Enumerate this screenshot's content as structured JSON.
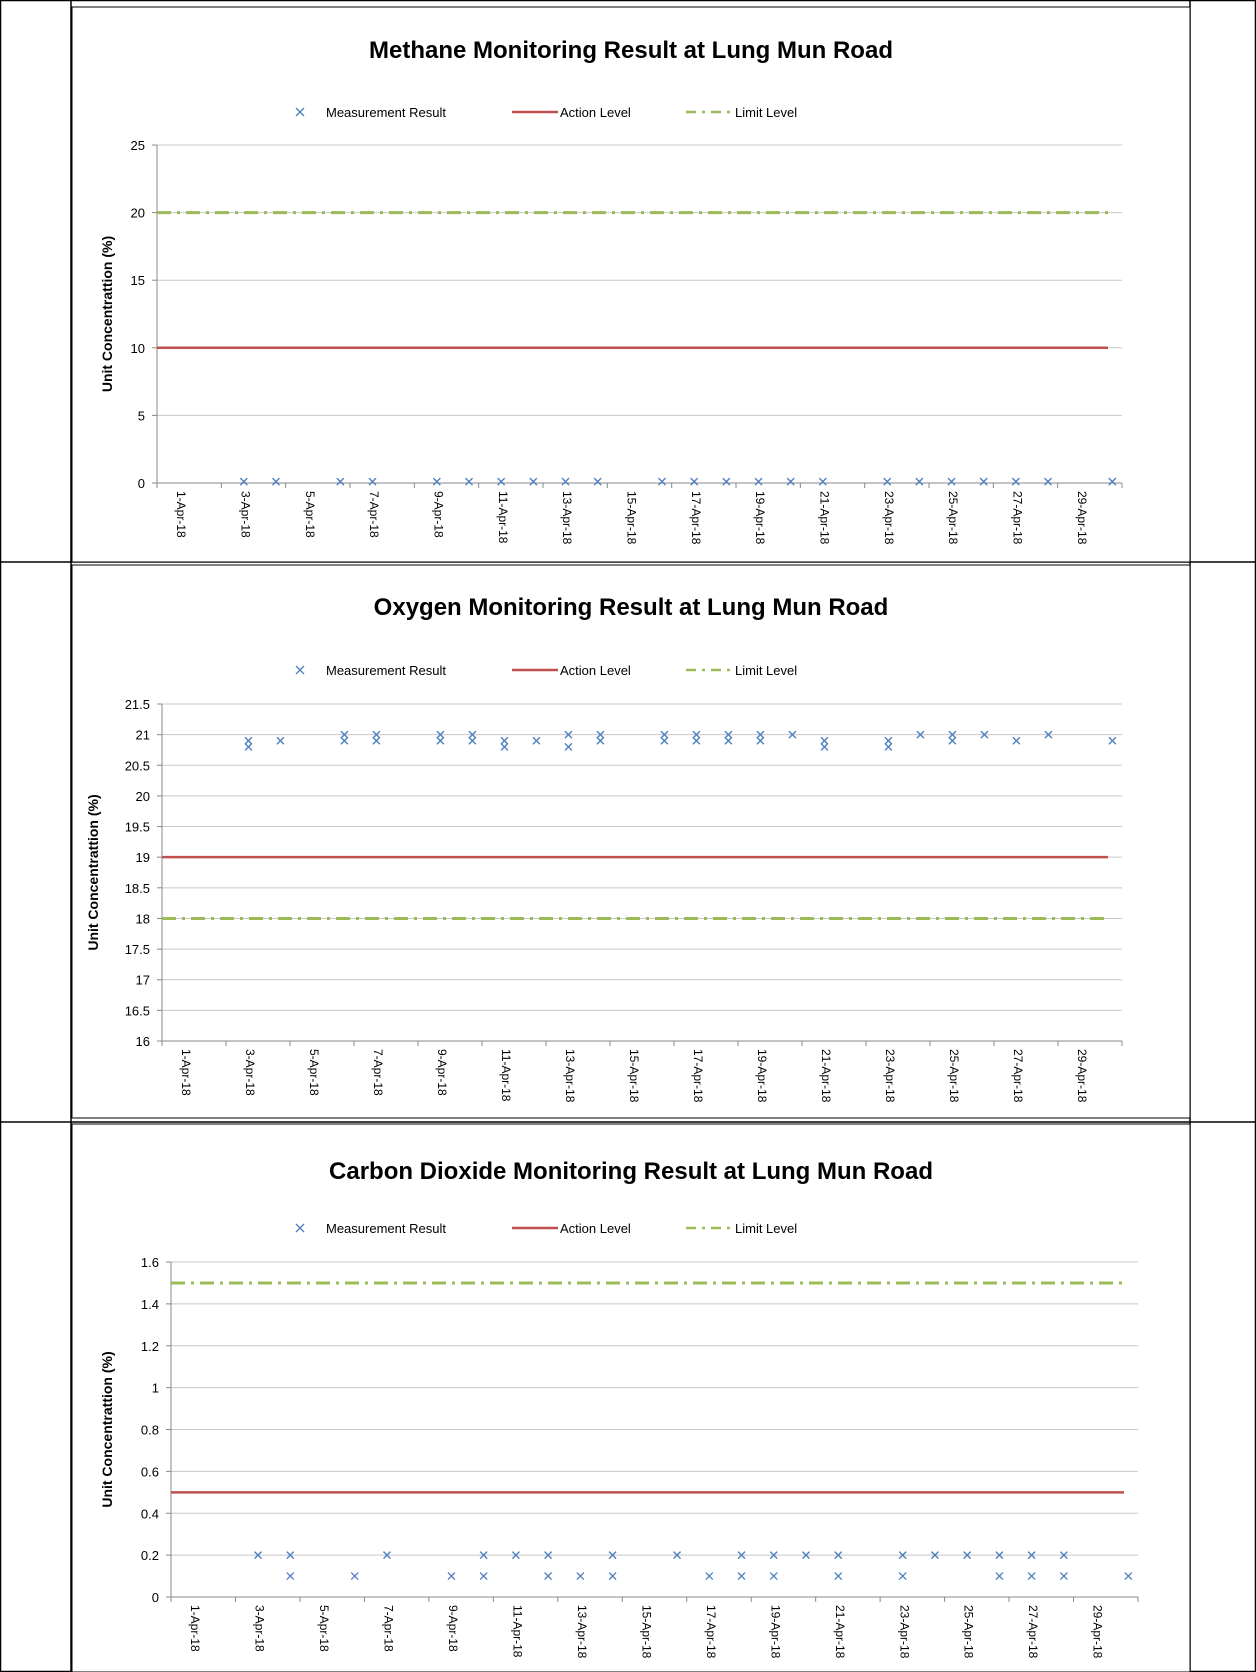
{
  "chart_data": [
    {
      "type": "scatter",
      "title": "Methane Monitoring Result at Lung Mun Road",
      "xlabel": "",
      "ylabel": "Unit Concentrattion (%)",
      "ylim": [
        0,
        25
      ],
      "yticks": [
        "0",
        "5",
        "10",
        "15",
        "20",
        "25"
      ],
      "xticks": [
        "1-Apr-18",
        "3-Apr-18",
        "5-Apr-18",
        "7-Apr-18",
        "9-Apr-18",
        "11-Apr-18",
        "13-Apr-18",
        "15-Apr-18",
        "17-Apr-18",
        "19-Apr-18",
        "21-Apr-18",
        "23-Apr-18",
        "25-Apr-18",
        "27-Apr-18",
        "29-Apr-18"
      ],
      "grid": true,
      "legend_position": "top",
      "legend": [
        "Measurement Result",
        "Action Level",
        "Limit Level"
      ],
      "action_level": 10,
      "limit_level": 20,
      "colors": {
        "measurement": "#4f81bd",
        "action": "#c0504d",
        "limit": "#9bbb59"
      },
      "series": [
        {
          "name": "Measurement Result",
          "points": [
            [
              3.2,
              0.1
            ],
            [
              4.2,
              0.1
            ],
            [
              6.2,
              0.1
            ],
            [
              7.2,
              0.1
            ],
            [
              9.2,
              0.1
            ],
            [
              10.2,
              0.1
            ],
            [
              11.2,
              0.1
            ],
            [
              12.2,
              0.1
            ],
            [
              13.2,
              0.1
            ],
            [
              14.2,
              0.1
            ],
            [
              16.2,
              0.1
            ],
            [
              17.2,
              0.1
            ],
            [
              18.2,
              0.1
            ],
            [
              19.2,
              0.1
            ],
            [
              20.2,
              0.1
            ],
            [
              21.2,
              0.1
            ],
            [
              23.2,
              0.1
            ],
            [
              24.2,
              0.1
            ],
            [
              25.2,
              0.1
            ],
            [
              26.2,
              0.1
            ],
            [
              27.2,
              0.1
            ],
            [
              28.2,
              0.1
            ],
            [
              30.2,
              0.1
            ]
          ]
        }
      ]
    },
    {
      "type": "scatter",
      "title": "Oxygen Monitoring Result at Lung Mun Road",
      "xlabel": "",
      "ylabel": "Unit Concentrattion (%)",
      "ylim": [
        16,
        21.5
      ],
      "yticks": [
        "16",
        "16.5",
        "17",
        "17.5",
        "18",
        "18.5",
        "19",
        "19.5",
        "20",
        "20.5",
        "21",
        "21.5"
      ],
      "xticks": [
        "1-Apr-18",
        "3-Apr-18",
        "5-Apr-18",
        "7-Apr-18",
        "9-Apr-18",
        "11-Apr-18",
        "13-Apr-18",
        "15-Apr-18",
        "17-Apr-18",
        "19-Apr-18",
        "21-Apr-18",
        "23-Apr-18",
        "25-Apr-18",
        "27-Apr-18",
        "29-Apr-18"
      ],
      "grid": true,
      "legend_position": "top",
      "legend": [
        "Measurement Result",
        "Action Level",
        "Limit Level"
      ],
      "action_level": 19,
      "limit_level": 18,
      "colors": {
        "measurement": "#4f81bd",
        "action": "#c0504d",
        "limit": "#9bbb59"
      },
      "series": [
        {
          "name": "Measurement Result",
          "points": [
            [
              3.2,
              20.9
            ],
            [
              3.2,
              20.8
            ],
            [
              4.2,
              20.9
            ],
            [
              6.2,
              21.0
            ],
            [
              6.2,
              20.9
            ],
            [
              7.2,
              21.0
            ],
            [
              7.2,
              20.9
            ],
            [
              9.2,
              21.0
            ],
            [
              9.2,
              20.9
            ],
            [
              10.2,
              21.0
            ],
            [
              10.2,
              20.9
            ],
            [
              11.2,
              20.9
            ],
            [
              11.2,
              20.8
            ],
            [
              12.2,
              20.9
            ],
            [
              13.2,
              21.0
            ],
            [
              13.2,
              20.8
            ],
            [
              14.2,
              21.0
            ],
            [
              14.2,
              20.9
            ],
            [
              16.2,
              21.0
            ],
            [
              16.2,
              20.9
            ],
            [
              17.2,
              21.0
            ],
            [
              17.2,
              20.9
            ],
            [
              18.2,
              21.0
            ],
            [
              18.2,
              20.9
            ],
            [
              19.2,
              21.0
            ],
            [
              19.2,
              20.9
            ],
            [
              20.2,
              21.0
            ],
            [
              21.2,
              20.9
            ],
            [
              21.2,
              20.8
            ],
            [
              23.2,
              20.9
            ],
            [
              23.2,
              20.8
            ],
            [
              24.2,
              21.0
            ],
            [
              25.2,
              21.0
            ],
            [
              25.2,
              20.9
            ],
            [
              26.2,
              21.0
            ],
            [
              27.2,
              20.9
            ],
            [
              28.2,
              21.0
            ],
            [
              30.2,
              20.9
            ]
          ]
        }
      ]
    },
    {
      "type": "scatter",
      "title": "Carbon Dioxide Monitoring Result at Lung Mun Road",
      "xlabel": "",
      "ylabel": "Unit Concentrattion (%)",
      "ylim": [
        0,
        1.6
      ],
      "yticks": [
        "0",
        "0.2",
        "0.4",
        "0.6",
        "0.8",
        "1",
        "1.2",
        "1.4",
        "1.6"
      ],
      "xticks": [
        "1-Apr-18",
        "3-Apr-18",
        "5-Apr-18",
        "7-Apr-18",
        "9-Apr-18",
        "11-Apr-18",
        "13-Apr-18",
        "15-Apr-18",
        "17-Apr-18",
        "19-Apr-18",
        "21-Apr-18",
        "23-Apr-18",
        "25-Apr-18",
        "27-Apr-18",
        "29-Apr-18"
      ],
      "grid": true,
      "legend_position": "top",
      "legend": [
        "Measurement Result",
        "Action Level",
        "Limit Level"
      ],
      "action_level": 0.5,
      "limit_level": 1.5,
      "colors": {
        "measurement": "#4f81bd",
        "action": "#c0504d",
        "limit": "#9bbb59"
      },
      "series": [
        {
          "name": "Measurement Result",
          "points": [
            [
              3.2,
              0.2
            ],
            [
              4.2,
              0.2
            ],
            [
              4.2,
              0.1
            ],
            [
              6.2,
              0.1
            ],
            [
              7.2,
              0.2
            ],
            [
              9.2,
              0.1
            ],
            [
              10.2,
              0.2
            ],
            [
              10.2,
              0.1
            ],
            [
              11.2,
              0.2
            ],
            [
              12.2,
              0.2
            ],
            [
              12.2,
              0.1
            ],
            [
              13.2,
              0.1
            ],
            [
              14.2,
              0.2
            ],
            [
              14.2,
              0.1
            ],
            [
              16.2,
              0.2
            ],
            [
              17.2,
              0.1
            ],
            [
              18.2,
              0.2
            ],
            [
              18.2,
              0.1
            ],
            [
              19.2,
              0.2
            ],
            [
              19.2,
              0.1
            ],
            [
              20.2,
              0.2
            ],
            [
              21.2,
              0.2
            ],
            [
              21.2,
              0.1
            ],
            [
              23.2,
              0.2
            ],
            [
              23.2,
              0.1
            ],
            [
              24.2,
              0.2
            ],
            [
              25.2,
              0.2
            ],
            [
              26.2,
              0.2
            ],
            [
              26.2,
              0.1
            ],
            [
              27.2,
              0.2
            ],
            [
              27.2,
              0.1
            ],
            [
              28.2,
              0.2
            ],
            [
              28.2,
              0.1
            ],
            [
              30.2,
              0.1
            ]
          ]
        }
      ]
    }
  ]
}
